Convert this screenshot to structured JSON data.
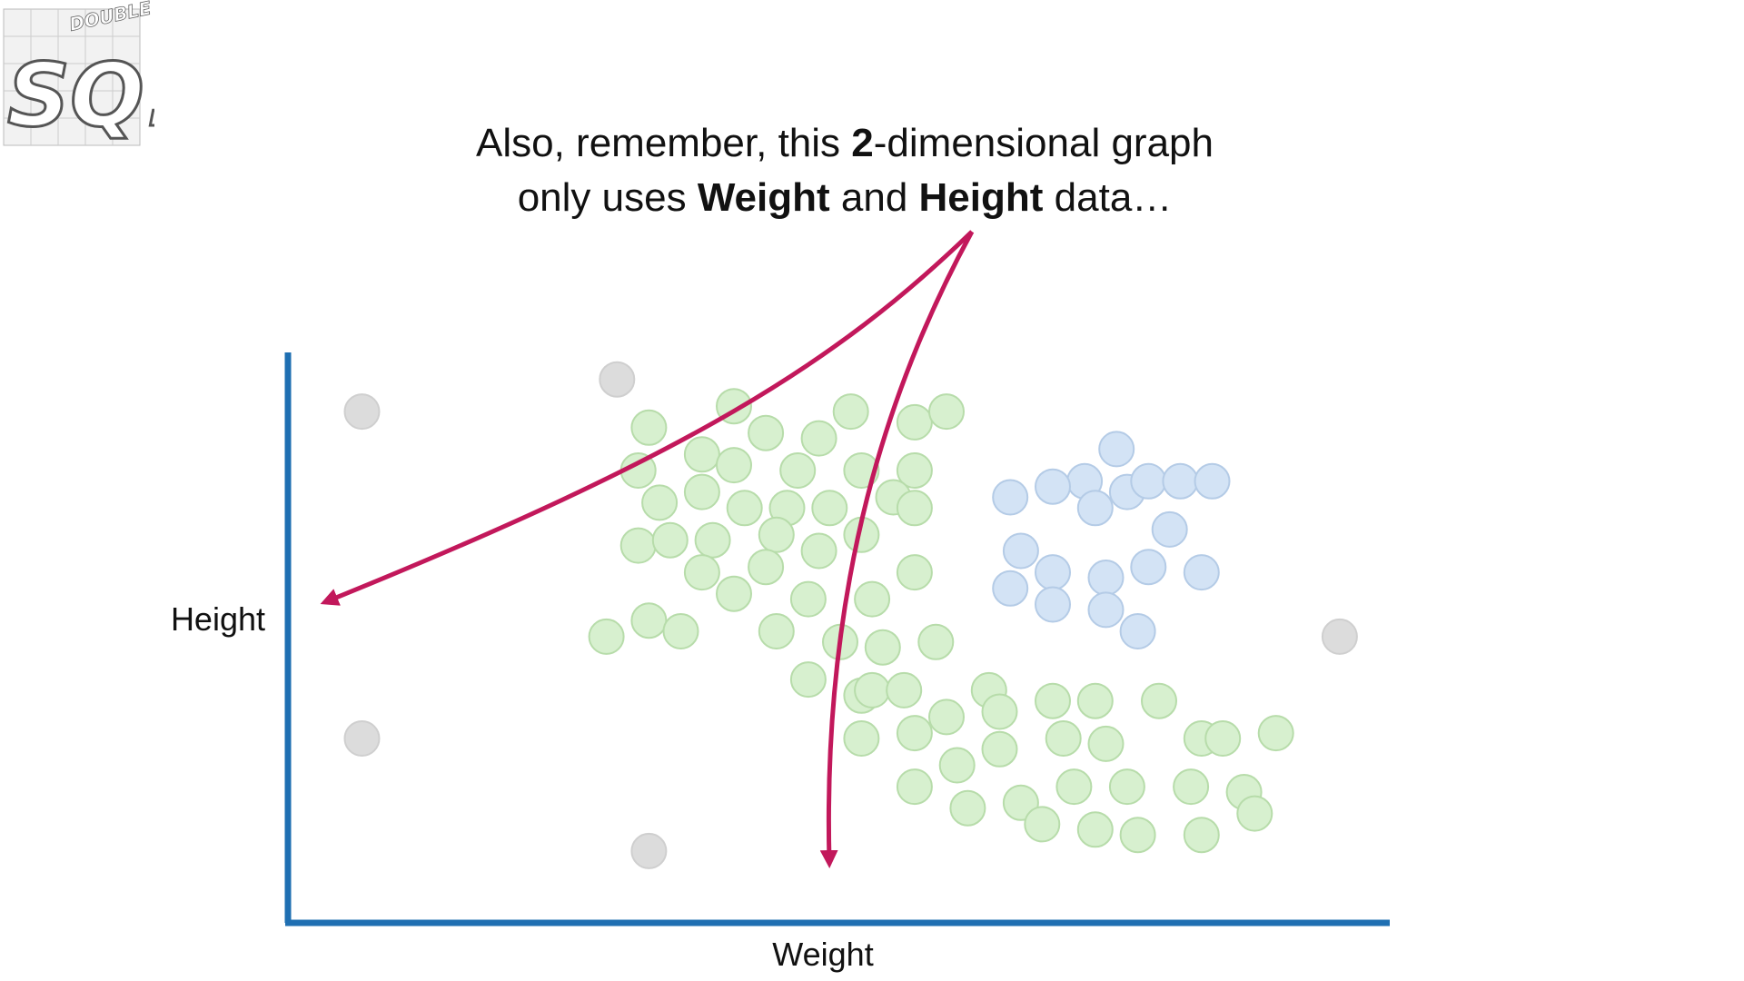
{
  "logo": {
    "letters": "SQ!",
    "tagline": "DOUBLE BAM!!"
  },
  "caption": {
    "line1_pre": "Also, remember, this ",
    "line1_bold": "2",
    "line1_post": "-dimensional graph",
    "line2_pre": "only uses ",
    "line2_bold1": "Weight",
    "line2_mid": " and ",
    "line2_bold2": "Height",
    "line2_post": " data…"
  },
  "colors": {
    "axis": "#1f6fb2",
    "arrow": "#c2185b",
    "green_fill": "#d7f0cf",
    "green_stroke": "#b7dcaa",
    "blue_fill": "#d3e3f5",
    "blue_stroke": "#b4cbe6",
    "gray_fill": "#dcdcdc",
    "gray_stroke": "#cfcfcf"
  },
  "chart_data": {
    "type": "scatter",
    "xlabel": "Weight",
    "ylabel": "Height",
    "xlim": [
      0,
      100
    ],
    "ylim": [
      0,
      100
    ],
    "grid": false,
    "series": [
      {
        "color": "green",
        "points": [
          [
            32,
            88
          ],
          [
            40,
            92
          ],
          [
            51,
            91
          ],
          [
            57,
            89
          ],
          [
            60,
            91
          ],
          [
            31,
            80
          ],
          [
            37,
            83
          ],
          [
            40,
            81
          ],
          [
            43,
            87
          ],
          [
            46,
            80
          ],
          [
            48,
            86
          ],
          [
            52,
            80
          ],
          [
            57,
            80
          ],
          [
            33,
            74
          ],
          [
            37,
            76
          ],
          [
            41,
            73
          ],
          [
            45,
            73
          ],
          [
            49,
            73
          ],
          [
            55,
            75
          ],
          [
            31,
            66
          ],
          [
            34,
            67
          ],
          [
            38,
            67
          ],
          [
            44,
            68
          ],
          [
            48,
            65
          ],
          [
            52,
            68
          ],
          [
            57,
            73
          ],
          [
            37,
            61
          ],
          [
            40,
            57
          ],
          [
            43,
            62
          ],
          [
            47,
            56
          ],
          [
            53,
            56
          ],
          [
            57,
            61
          ],
          [
            28,
            49
          ],
          [
            32,
            52
          ],
          [
            35,
            50
          ],
          [
            44,
            50
          ],
          [
            50,
            48
          ],
          [
            54,
            47
          ],
          [
            59,
            48
          ],
          [
            47,
            41
          ],
          [
            52,
            38
          ],
          [
            53,
            39
          ],
          [
            56,
            39
          ],
          [
            60,
            34
          ],
          [
            64,
            39
          ],
          [
            65,
            35
          ],
          [
            70,
            37
          ],
          [
            74,
            37
          ],
          [
            80,
            37
          ],
          [
            52,
            30
          ],
          [
            57,
            31
          ],
          [
            61,
            25
          ],
          [
            65,
            28
          ],
          [
            71,
            30
          ],
          [
            75,
            29
          ],
          [
            84,
            30
          ],
          [
            86,
            30
          ],
          [
            91,
            31
          ],
          [
            57,
            21
          ],
          [
            62,
            17
          ],
          [
            67,
            18
          ],
          [
            72,
            21
          ],
          [
            77,
            21
          ],
          [
            83,
            21
          ],
          [
            88,
            20
          ],
          [
            69,
            14
          ],
          [
            74,
            13
          ],
          [
            78,
            12
          ],
          [
            84,
            12
          ],
          [
            89,
            16
          ]
        ]
      },
      {
        "color": "blue",
        "points": [
          [
            76,
            84
          ],
          [
            73,
            78
          ],
          [
            77,
            76
          ],
          [
            79,
            78
          ],
          [
            82,
            78
          ],
          [
            85,
            78
          ],
          [
            66,
            75
          ],
          [
            70,
            77
          ],
          [
            74,
            73
          ],
          [
            81,
            69
          ],
          [
            67,
            65
          ],
          [
            70,
            61
          ],
          [
            75,
            60
          ],
          [
            79,
            62
          ],
          [
            84,
            61
          ],
          [
            66,
            58
          ],
          [
            70,
            55
          ],
          [
            75,
            54
          ],
          [
            78,
            50
          ]
        ]
      },
      {
        "color": "gray",
        "points": [
          [
            5,
            91
          ],
          [
            29,
            97
          ],
          [
            97,
            49
          ],
          [
            5,
            30
          ],
          [
            32,
            9
          ]
        ]
      }
    ]
  }
}
